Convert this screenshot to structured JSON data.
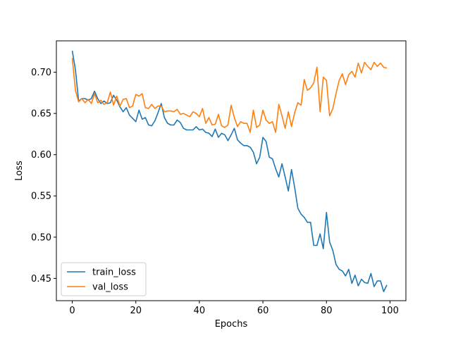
{
  "chart_data": {
    "type": "line",
    "xlabel": "Epochs",
    "ylabel": "Loss",
    "xlim": [
      -5,
      105
    ],
    "ylim": [
      0.423,
      0.738
    ],
    "xticks": [
      0,
      20,
      40,
      60,
      80,
      100
    ],
    "yticks": [
      0.45,
      0.5,
      0.55,
      0.6,
      0.65,
      0.7
    ],
    "legend_position": "lower-left",
    "grid": false,
    "series": [
      {
        "name": "train_loss",
        "color": "#1f77b4",
        "x": [
          0,
          1,
          2,
          3,
          4,
          5,
          6,
          7,
          8,
          9,
          10,
          11,
          12,
          13,
          14,
          15,
          16,
          17,
          18,
          19,
          20,
          21,
          22,
          23,
          24,
          25,
          26,
          27,
          28,
          29,
          30,
          31,
          32,
          33,
          34,
          35,
          36,
          37,
          38,
          39,
          40,
          41,
          42,
          43,
          44,
          45,
          46,
          47,
          48,
          49,
          50,
          51,
          52,
          53,
          54,
          55,
          56,
          57,
          58,
          59,
          60,
          61,
          62,
          63,
          64,
          65,
          66,
          67,
          68,
          69,
          70,
          71,
          72,
          73,
          74,
          75,
          76,
          77,
          78,
          79,
          80,
          81,
          82,
          83,
          84,
          85,
          86,
          87,
          88,
          89,
          90,
          91,
          92,
          93,
          94,
          95,
          96,
          97,
          98,
          99
        ],
        "values": [
          0.726,
          0.703,
          0.665,
          0.668,
          0.668,
          0.666,
          0.668,
          0.677,
          0.668,
          0.662,
          0.665,
          0.662,
          0.663,
          0.672,
          0.666,
          0.658,
          0.652,
          0.657,
          0.648,
          0.644,
          0.64,
          0.654,
          0.643,
          0.645,
          0.636,
          0.635,
          0.641,
          0.651,
          0.662,
          0.645,
          0.638,
          0.636,
          0.636,
          0.642,
          0.639,
          0.632,
          0.63,
          0.63,
          0.63,
          0.634,
          0.63,
          0.631,
          0.627,
          0.626,
          0.622,
          0.631,
          0.621,
          0.626,
          0.624,
          0.617,
          0.624,
          0.632,
          0.618,
          0.614,
          0.611,
          0.611,
          0.609,
          0.603,
          0.589,
          0.597,
          0.621,
          0.616,
          0.597,
          0.595,
          0.583,
          0.573,
          0.589,
          0.573,
          0.556,
          0.582,
          0.56,
          0.535,
          0.528,
          0.524,
          0.518,
          0.518,
          0.49,
          0.49,
          0.504,
          0.486,
          0.53,
          0.494,
          0.484,
          0.467,
          0.461,
          0.459,
          0.453,
          0.461,
          0.444,
          0.454,
          0.441,
          0.449,
          0.445,
          0.444,
          0.456,
          0.44,
          0.447,
          0.447,
          0.434,
          0.442
        ]
      },
      {
        "name": "val_loss",
        "color": "#ff7f0e",
        "x": [
          0,
          1,
          2,
          3,
          4,
          5,
          6,
          7,
          8,
          9,
          10,
          11,
          12,
          13,
          14,
          15,
          16,
          17,
          18,
          19,
          20,
          21,
          22,
          23,
          24,
          25,
          26,
          27,
          28,
          29,
          30,
          31,
          32,
          33,
          34,
          35,
          36,
          37,
          38,
          39,
          40,
          41,
          42,
          43,
          44,
          45,
          46,
          47,
          48,
          49,
          50,
          51,
          52,
          53,
          54,
          55,
          56,
          57,
          58,
          59,
          60,
          61,
          62,
          63,
          64,
          65,
          66,
          67,
          68,
          69,
          70,
          71,
          72,
          73,
          74,
          75,
          76,
          77,
          78,
          79,
          80,
          81,
          82,
          83,
          84,
          85,
          86,
          87,
          88,
          89,
          90,
          91,
          92,
          93,
          94,
          95,
          96,
          97,
          98,
          99
        ],
        "values": [
          0.717,
          0.678,
          0.664,
          0.668,
          0.663,
          0.667,
          0.662,
          0.674,
          0.663,
          0.666,
          0.661,
          0.663,
          0.676,
          0.66,
          0.671,
          0.659,
          0.667,
          0.668,
          0.657,
          0.659,
          0.673,
          0.671,
          0.674,
          0.657,
          0.656,
          0.661,
          0.656,
          0.659,
          0.659,
          0.652,
          0.653,
          0.653,
          0.652,
          0.655,
          0.649,
          0.65,
          0.648,
          0.646,
          0.652,
          0.65,
          0.646,
          0.656,
          0.638,
          0.645,
          0.636,
          0.637,
          0.649,
          0.635,
          0.633,
          0.636,
          0.66,
          0.645,
          0.634,
          0.64,
          0.638,
          0.638,
          0.627,
          0.654,
          0.633,
          0.636,
          0.654,
          0.642,
          0.638,
          0.64,
          0.627,
          0.661,
          0.647,
          0.632,
          0.652,
          0.634,
          0.651,
          0.663,
          0.66,
          0.691,
          0.678,
          0.681,
          0.687,
          0.706,
          0.652,
          0.694,
          0.69,
          0.647,
          0.656,
          0.674,
          0.69,
          0.698,
          0.685,
          0.697,
          0.701,
          0.694,
          0.711,
          0.699,
          0.712,
          0.707,
          0.703,
          0.712,
          0.707,
          0.711,
          0.706,
          0.705
        ]
      }
    ]
  }
}
